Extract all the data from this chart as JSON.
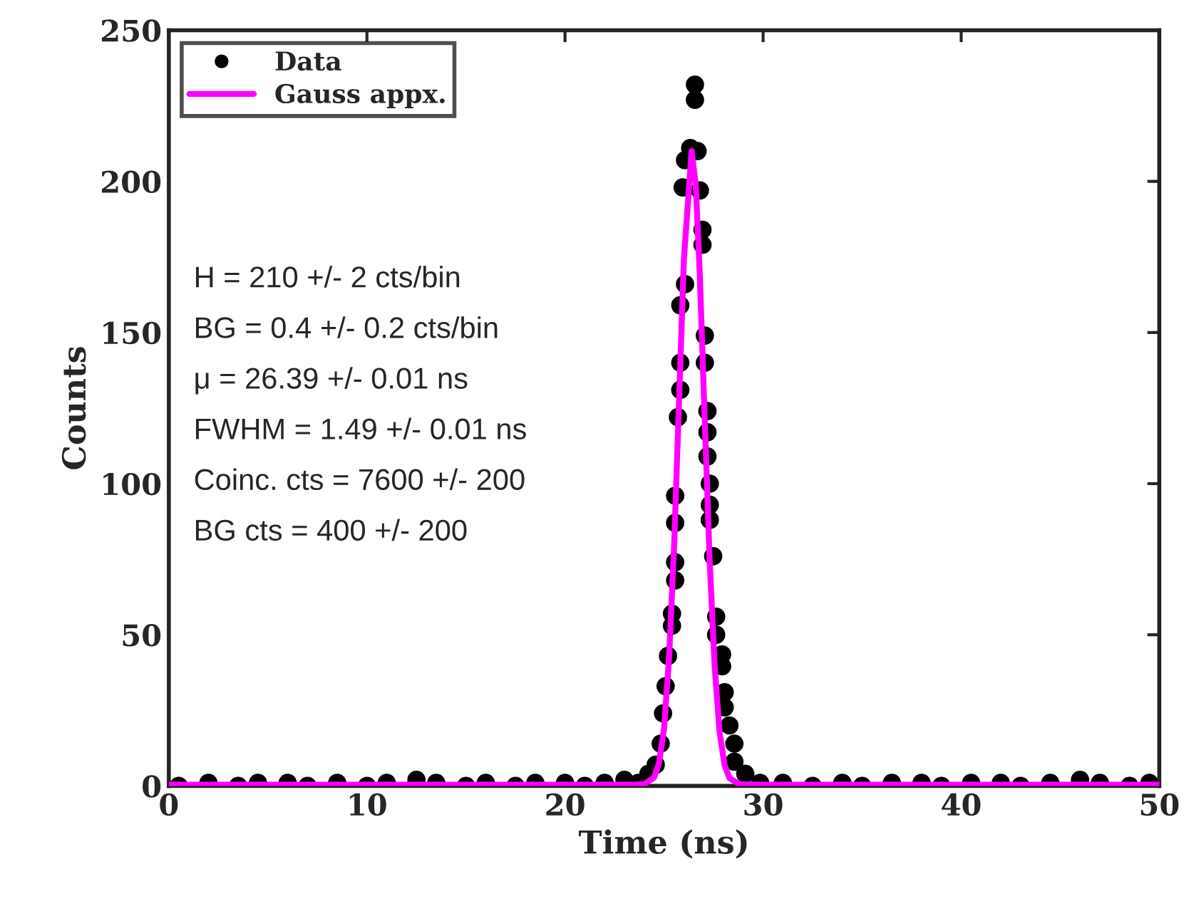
{
  "chart_data": {
    "type": "scatter",
    "xlabel": "Time (ns)",
    "ylabel": "Counts",
    "xlim": [
      0,
      50
    ],
    "ylim": [
      0,
      250
    ],
    "xticks": [
      0,
      10,
      20,
      30,
      40,
      50
    ],
    "yticks": [
      0,
      50,
      100,
      150,
      200,
      250
    ],
    "grid": false,
    "legend": "top left",
    "series": [
      {
        "name": "Data",
        "marker": "circle",
        "color": "#000000",
        "x": [
          0.5,
          2,
          3.5,
          4.5,
          6,
          7,
          8.5,
          10,
          11,
          12.5,
          13.5,
          15,
          16,
          17.5,
          18.5,
          20,
          21,
          22,
          23,
          23.7,
          24.21,
          24.58,
          24.83,
          24.95,
          25.08,
          25.2,
          25.4,
          25.4,
          25.56,
          25.56,
          25.56,
          25.56,
          25.7,
          25.82,
          25.82,
          25.82,
          25.94,
          26.06,
          26.06,
          26.32,
          26.56,
          26.56,
          26.69,
          26.81,
          26.94,
          26.94,
          27.06,
          27.06,
          27.19,
          27.19,
          27.19,
          27.31,
          27.31,
          27.31,
          27.48,
          27.63,
          27.63,
          27.93,
          27.93,
          28.06,
          28.06,
          28.3,
          28.55,
          28.55,
          29.1,
          29.85,
          31,
          32.5,
          34,
          35,
          36.5,
          38,
          39,
          40.5,
          42,
          43,
          44.5,
          46,
          47,
          48.5,
          49.5
        ],
        "values": [
          0,
          1,
          0,
          1,
          1,
          0,
          1,
          0,
          1,
          2,
          1,
          0,
          1,
          0,
          1,
          1,
          0,
          1,
          2,
          1,
          4,
          7,
          14,
          24,
          33,
          43,
          57,
          53,
          68,
          74,
          87,
          96,
          122,
          131,
          140,
          159,
          198,
          166,
          207,
          211,
          227,
          232,
          210,
          197,
          184,
          179,
          149,
          140,
          124,
          117,
          109,
          100,
          93,
          88,
          76,
          56,
          50,
          43.5,
          39.6,
          31,
          26,
          20,
          14,
          8,
          4,
          1,
          1,
          0,
          1,
          0,
          1,
          1,
          0,
          1,
          1,
          0,
          1,
          2,
          1,
          0,
          1
        ]
      },
      {
        "name": "Gauss appx.",
        "type": "line",
        "marker": "none",
        "color": "#ff00ff",
        "x": [
          0,
          23.5,
          24.0,
          24.5,
          24.75,
          25.0,
          25.25,
          25.5,
          25.75,
          26.0,
          26.39,
          26.6,
          26.8,
          27.05,
          27.3,
          27.55,
          27.8,
          28.05,
          28.3,
          28.8,
          29.5,
          50
        ],
        "values": [
          0.4,
          0.4,
          0.6,
          2.8,
          7.7,
          19,
          42,
          78,
          126,
          174,
          210,
          199,
          170,
          122,
          75,
          40,
          18,
          7,
          2.6,
          0.6,
          0.4,
          0.4
        ]
      }
    ],
    "annotations": [
      "H = 210 +/- 2 cts/bin",
      "BG = 0.4 +/- 0.2 cts/bin",
      "μ = 26.39 +/- 0.01 ns",
      "FWHM = 1.49 +/- 0.01 ns",
      "Coinc. cts = 7600 +/- 200",
      "BG cts = 400 +/- 200"
    ]
  }
}
